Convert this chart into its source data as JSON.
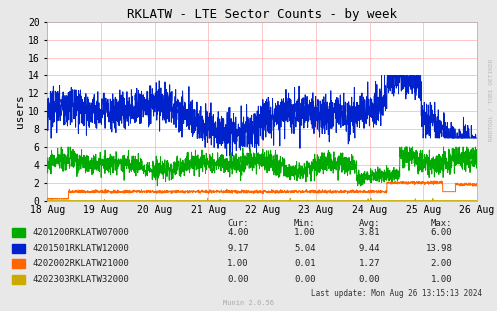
{
  "title": "RKLATW - LTE Sector Counts - by week",
  "ylabel": "users",
  "xlabel_dates": [
    "18 Aug",
    "19 Aug",
    "20 Aug",
    "21 Aug",
    "22 Aug",
    "23 Aug",
    "24 Aug",
    "25 Aug",
    "26 Aug"
  ],
  "ylim": [
    0,
    20
  ],
  "background_color": "#ffffff",
  "plot_bg": "#ffffff",
  "fig_bg": "#e8e8e8",
  "grid_color": "#ffb0b0",
  "series": [
    {
      "label": "4201200RKLATW07000",
      "color": "#00aa00",
      "cur": "4.00",
      "min": "1.00",
      "avg": "3.81",
      "max": "6.00"
    },
    {
      "label": "4201501RKLATW12000",
      "color": "#0022cc",
      "cur": "9.17",
      "min": "5.04",
      "avg": "9.44",
      "max": "13.98"
    },
    {
      "label": "4202002RKLATW21000",
      "color": "#ff6600",
      "cur": "1.00",
      "min": "0.01",
      "avg": "1.27",
      "max": "2.00"
    },
    {
      "label": "4202303RKLATW32000",
      "color": "#ccaa00",
      "cur": "0.00",
      "min": "0.00",
      "avg": "0.00",
      "max": "1.00"
    }
  ],
  "footer": "Last update: Mon Aug 26 13:15:13 2024",
  "munin_version": "Munin 2.0.56",
  "rrdtool_label": "RRDTOOL / TOBI OETIKER"
}
